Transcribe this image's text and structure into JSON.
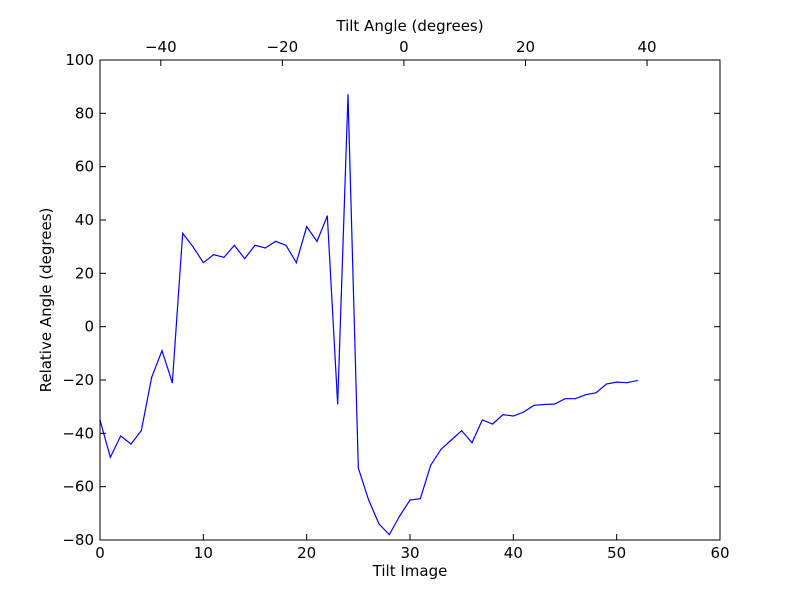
{
  "chart_data": {
    "type": "line",
    "title": "",
    "xlabel": "Tilt Image",
    "ylabel": "Relative Angle (degrees)",
    "top_xlabel": "Tilt Angle (degrees)",
    "xlim": [
      0,
      60
    ],
    "ylim": [
      -80,
      100
    ],
    "top_xlim": [
      -50,
      52
    ],
    "x_ticks": [
      0,
      10,
      20,
      30,
      40,
      50,
      60
    ],
    "x_tick_labels": [
      "0",
      "10",
      "20",
      "30",
      "40",
      "50",
      "60"
    ],
    "y_ticks": [
      -80,
      -60,
      -40,
      -20,
      0,
      20,
      40,
      60,
      80,
      100
    ],
    "y_tick_labels": [
      "−80",
      "−60",
      "−40",
      "−20",
      "0",
      "20",
      "40",
      "60",
      "80",
      "100"
    ],
    "top_ticks": [
      -40,
      -20,
      0,
      20,
      40
    ],
    "top_tick_labels": [
      "−40",
      "−20",
      "0",
      "20",
      "40"
    ],
    "grid": false,
    "series": [
      {
        "color": "#0000ff",
        "x": [
          0,
          1,
          2,
          3,
          4,
          5,
          6,
          7,
          8,
          9,
          10,
          11,
          12,
          13,
          14,
          15,
          16,
          17,
          18,
          19,
          20,
          21,
          22,
          23,
          24,
          25,
          26,
          27,
          28,
          29,
          30,
          31,
          32,
          33,
          34,
          35,
          36,
          37,
          38,
          39,
          40,
          41,
          42,
          43,
          44,
          45,
          46,
          47,
          48,
          49,
          50,
          51,
          52
        ],
        "values": [
          -35,
          -49,
          -41,
          -44,
          -39,
          -19,
          -9,
          -21,
          35,
          30,
          24,
          27,
          26,
          30.5,
          25.5,
          30.5,
          29.5,
          32,
          30.5,
          24,
          37.5,
          32,
          41.5,
          -29,
          87,
          -53,
          -65,
          -74,
          -78,
          -71,
          -65,
          -64.5,
          -52,
          -46,
          -42.5,
          -39,
          -43.5,
          -35,
          -36.5,
          -33,
          -33.5,
          -32,
          -29.5,
          -29.2,
          -29,
          -27,
          -27,
          -25.5,
          -24.8,
          -21.5,
          -20.8,
          -21,
          -20.2
        ]
      }
    ]
  }
}
